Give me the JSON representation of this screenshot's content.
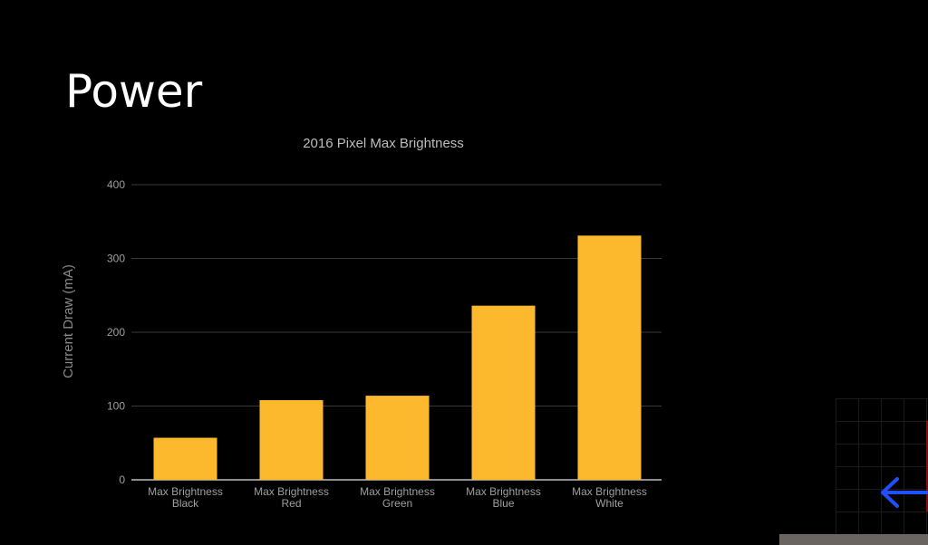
{
  "slide": {
    "title": "Power"
  },
  "chart_data": {
    "type": "bar",
    "title": "2016 Pixel Max Brightness",
    "xlabel": "",
    "ylabel": "Current Draw (mA)",
    "ylim": [
      0,
      400
    ],
    "yticks": [
      "0",
      "100",
      "200",
      "300",
      "400"
    ],
    "grid": true,
    "categories": [
      [
        "Max Brightness",
        "Black"
      ],
      [
        "Max Brightness",
        "Red"
      ],
      [
        "Max Brightness",
        "Green"
      ],
      [
        "Max Brightness",
        "Blue"
      ],
      [
        "Max Brightness",
        "White"
      ]
    ],
    "values": [
      57,
      108,
      114,
      236,
      331
    ],
    "colors": {
      "bar": "#FDB92E",
      "grid": "#3a3a3a",
      "axis": "#bdbdbd",
      "text": "#9e9e9e"
    }
  },
  "overlay": {
    "arrow_icon": "arrow-left-icon",
    "arrow_color": "#1f4fff"
  }
}
